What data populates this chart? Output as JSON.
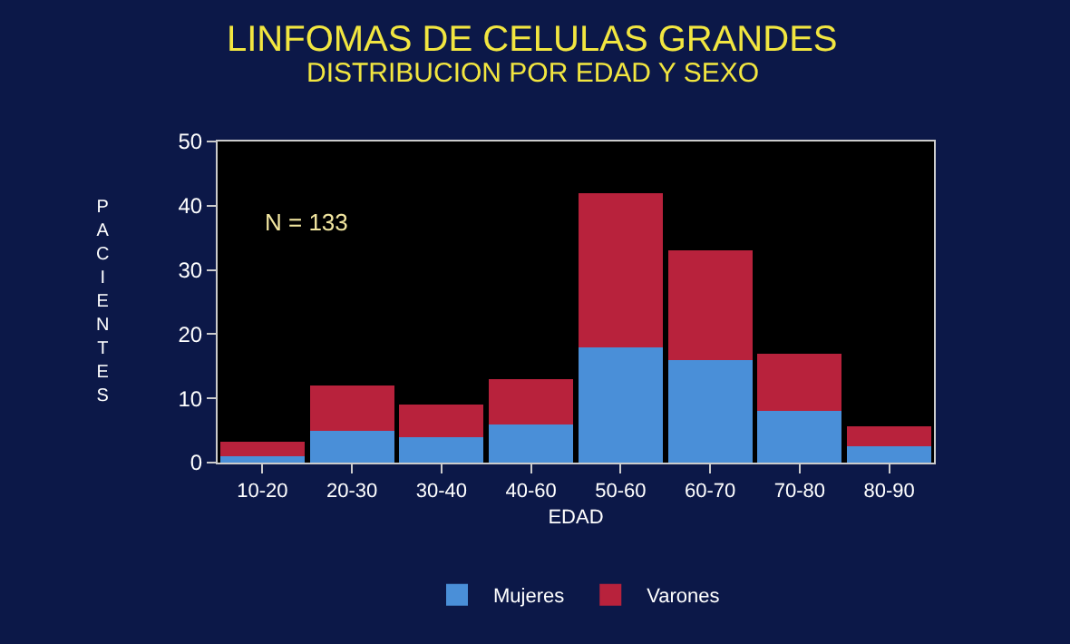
{
  "chart_data": {
    "type": "bar",
    "stacked": true,
    "title": "LINFOMAS DE CELULAS GRANDES",
    "subtitle": "DISTRIBUCION POR EDAD Y SEXO",
    "xlabel": "EDAD",
    "ylabel": "PACIENTES",
    "categories": [
      "10-20",
      "20-30",
      "30-40",
      "40-60",
      "50-60",
      "60-70",
      "70-80",
      "80-90"
    ],
    "series": [
      {
        "name": "Mujeres",
        "color": "#4a8fd8",
        "values": [
          1,
          5,
          4,
          6,
          18,
          16,
          8,
          2.5
        ]
      },
      {
        "name": "Varones",
        "color": "#b8223c",
        "values": [
          2.3,
          7,
          5,
          7,
          24,
          17,
          9,
          3.2
        ]
      }
    ],
    "ylim": [
      0,
      50
    ],
    "yticks": [
      0,
      10,
      20,
      30,
      40,
      50
    ],
    "legend": "bottom",
    "grid": false,
    "annotations": [
      "N = 133"
    ]
  }
}
